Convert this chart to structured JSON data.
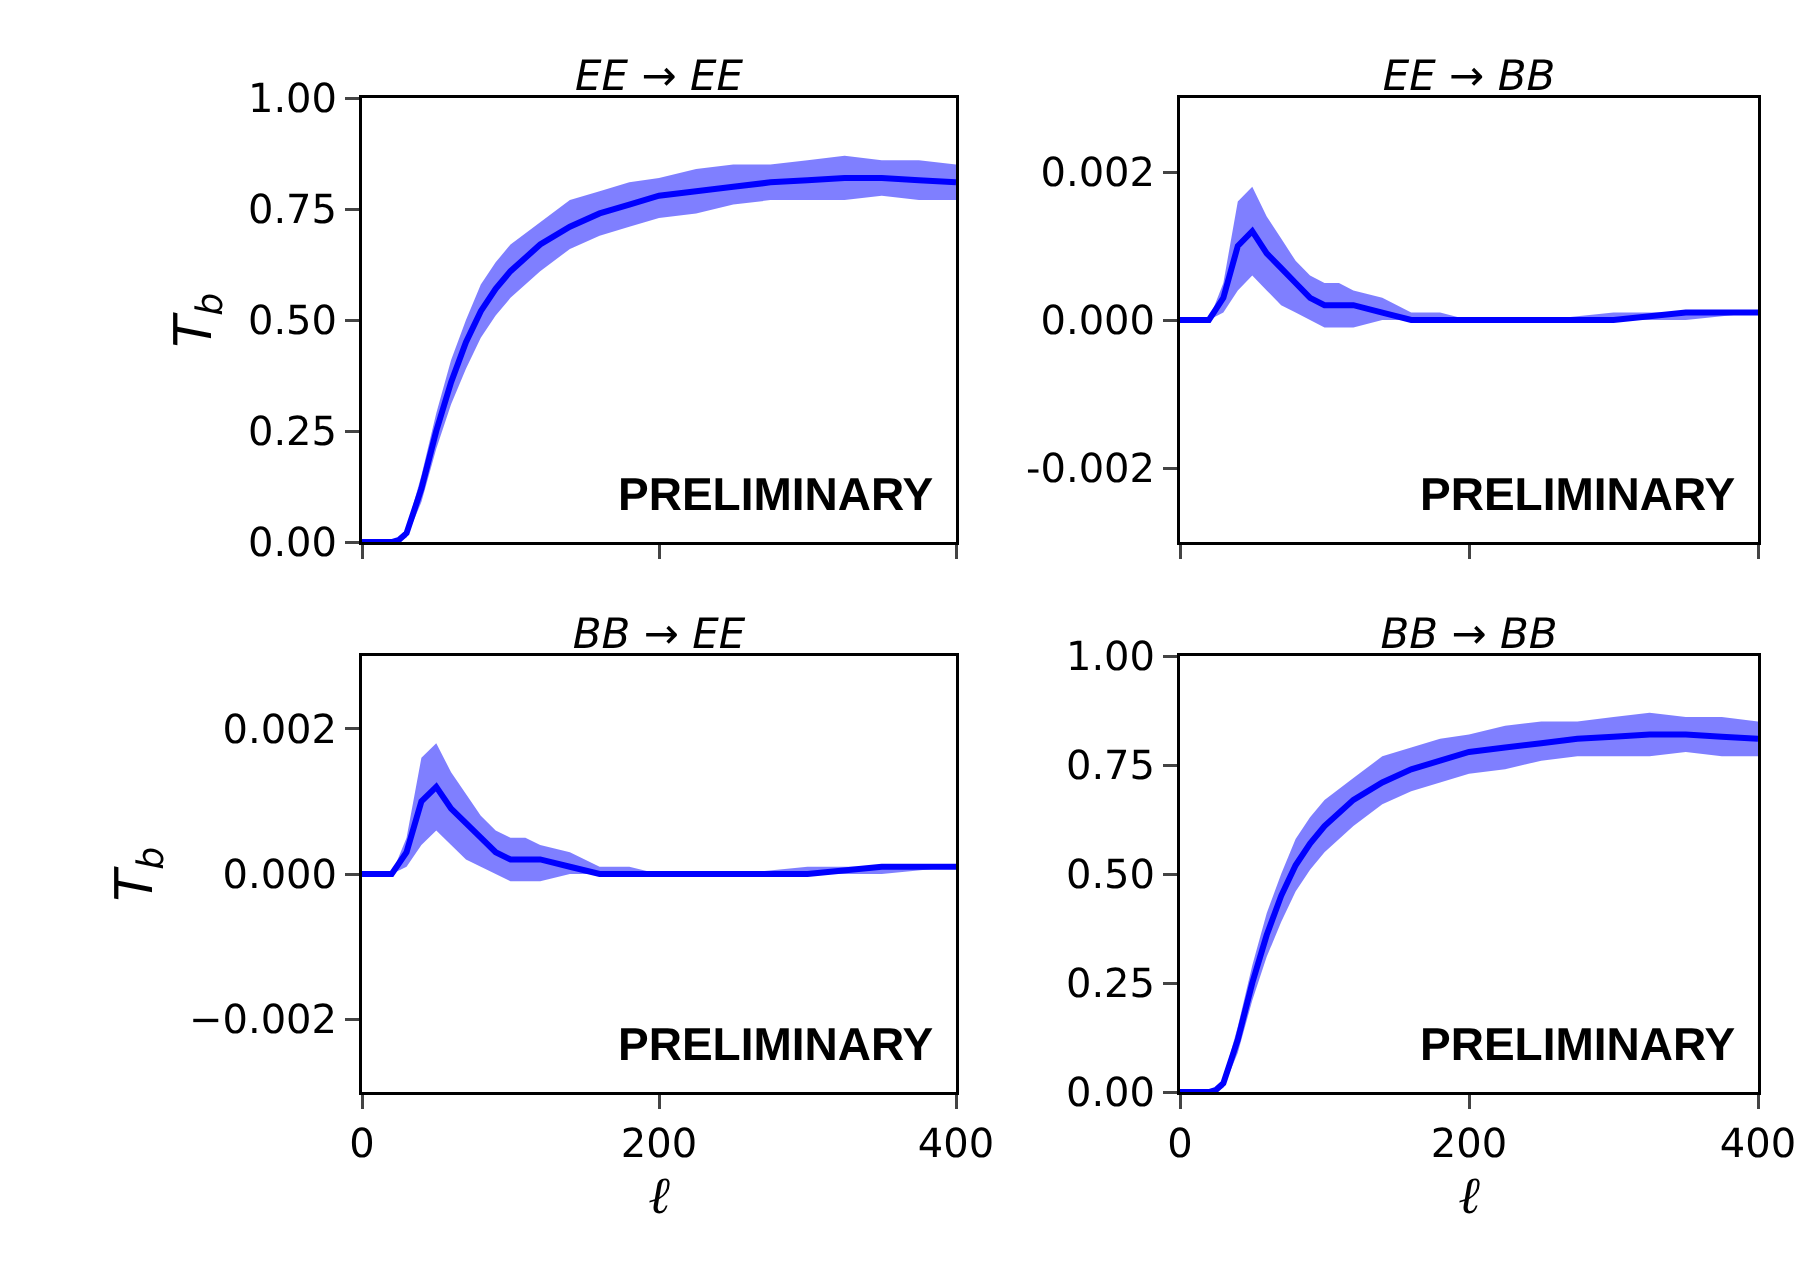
{
  "chart_data": [
    {
      "type": "line",
      "title": "EE → EE",
      "ylabel": "T$_{b}$",
      "x": [
        0,
        10,
        20,
        25,
        30,
        40,
        50,
        60,
        70,
        80,
        90,
        100,
        120,
        140,
        160,
        180,
        200,
        225,
        250,
        275,
        300,
        325,
        350,
        375,
        400
      ],
      "series": [
        {
          "color": "#0000ff",
          "values": [
            0,
            0,
            0,
            0.005,
            0.02,
            0.12,
            0.25,
            0.36,
            0.45,
            0.52,
            0.57,
            0.61,
            0.67,
            0.71,
            0.74,
            0.76,
            0.78,
            0.79,
            0.8,
            0.81,
            0.815,
            0.82,
            0.82,
            0.815,
            0.81
          ],
          "lower": [
            0,
            0,
            0,
            0,
            0.01,
            0.09,
            0.21,
            0.31,
            0.39,
            0.46,
            0.51,
            0.55,
            0.61,
            0.66,
            0.69,
            0.71,
            0.73,
            0.74,
            0.76,
            0.77,
            0.77,
            0.77,
            0.78,
            0.77,
            0.77
          ],
          "upper": [
            0,
            0,
            0,
            0.01,
            0.03,
            0.15,
            0.29,
            0.41,
            0.5,
            0.58,
            0.63,
            0.67,
            0.72,
            0.77,
            0.79,
            0.81,
            0.82,
            0.84,
            0.85,
            0.85,
            0.86,
            0.87,
            0.86,
            0.86,
            0.85
          ]
        }
      ],
      "xlim": [
        0,
        400
      ],
      "xticks": [
        {
          "value": 0,
          "label": null
        },
        {
          "value": 200,
          "label": null
        },
        {
          "value": 400,
          "label": null
        }
      ],
      "ylim": [
        0,
        1
      ],
      "yticks": [
        {
          "value": 0,
          "label": "0.00"
        },
        {
          "value": 0.25,
          "label": "0.25"
        },
        {
          "value": 0.5,
          "label": "0.50"
        },
        {
          "value": 0.75,
          "label": "0.75"
        },
        {
          "value": 1,
          "label": "1.00"
        }
      ],
      "tick_labels": "y",
      "grid": false,
      "annotations": [
        "PRELIMINARY"
      ]
    },
    {
      "type": "line",
      "title": "EE → BB",
      "x": [
        0,
        10,
        20,
        30,
        40,
        50,
        60,
        70,
        80,
        90,
        100,
        110,
        120,
        140,
        160,
        180,
        200,
        250,
        300,
        350,
        400
      ],
      "series": [
        {
          "color": "#0000ff",
          "values": [
            0,
            0,
            0,
            0.0003,
            0.001,
            0.0012,
            0.0009,
            0.0007,
            0.0005,
            0.0003,
            0.0002,
            0.0002,
            0.0002,
            0.0001,
            0,
            0,
            0,
            0,
            0,
            0.0001,
            0.0001
          ],
          "lower": [
            0,
            0,
            0,
            0.0001,
            0.0004,
            0.0006,
            0.0004,
            0.0002,
            0.0001,
            0,
            -0.0001,
            -0.0001,
            -0.0001,
            0,
            0,
            0,
            0,
            0,
            0,
            0,
            0.0001
          ],
          "upper": [
            0,
            0,
            0,
            0.0005,
            0.0016,
            0.0018,
            0.0014,
            0.0011,
            0.0008,
            0.0006,
            0.0005,
            0.0005,
            0.0004,
            0.0003,
            0.0001,
            0.0001,
            0,
            0,
            0.0001,
            0.0001,
            0.0001
          ]
        }
      ],
      "xlim": [
        0,
        400
      ],
      "xticks": [
        {
          "value": 0,
          "label": null
        },
        {
          "value": 200,
          "label": null
        },
        {
          "value": 400,
          "label": null
        }
      ],
      "ylim": [
        -0.003,
        0.003
      ],
      "yticks": [
        {
          "value": -0.002,
          "label": "-0.002"
        },
        {
          "value": 0,
          "label": "0.000"
        },
        {
          "value": 0.002,
          "label": "0.002"
        }
      ],
      "tick_labels": "y",
      "grid": false,
      "annotations": [
        "PRELIMINARY"
      ]
    },
    {
      "type": "line",
      "title": "BB → EE",
      "ylabel": "T$_{b}$",
      "xlabel": "ℓ",
      "x": [
        0,
        10,
        20,
        30,
        40,
        50,
        60,
        70,
        80,
        90,
        100,
        110,
        120,
        140,
        160,
        180,
        200,
        250,
        300,
        350,
        400
      ],
      "series": [
        {
          "color": "#0000ff",
          "values": [
            0,
            0,
            0,
            0.0003,
            0.001,
            0.0012,
            0.0009,
            0.0007,
            0.0005,
            0.0003,
            0.0002,
            0.0002,
            0.0002,
            0.0001,
            0,
            0,
            0,
            0,
            0,
            0.0001,
            0.0001
          ],
          "lower": [
            0,
            0,
            0,
            0.0001,
            0.0004,
            0.0006,
            0.0004,
            0.0002,
            0.0001,
            0,
            -0.0001,
            -0.0001,
            -0.0001,
            0,
            0,
            0,
            0,
            0,
            0,
            0,
            0.0001
          ],
          "upper": [
            0,
            0,
            0,
            0.0005,
            0.0016,
            0.0018,
            0.0014,
            0.0011,
            0.0008,
            0.0006,
            0.0005,
            0.0005,
            0.0004,
            0.0003,
            0.0001,
            0.0001,
            0,
            0,
            0.0001,
            0.0001,
            0.0001
          ]
        }
      ],
      "xlim": [
        0,
        400
      ],
      "xticks": [
        0,
        200,
        400
      ],
      "ylim": [
        -0.003,
        0.003
      ],
      "yticks": [
        {
          "value": -0.002,
          "label": "−0.002"
        },
        {
          "value": 0,
          "label": "0.000"
        },
        {
          "value": 0.002,
          "label": "0.002"
        }
      ],
      "grid": false,
      "annotations": [
        "PRELIMINARY"
      ]
    },
    {
      "type": "line",
      "title": "BB → BB",
      "xlabel": "ℓ",
      "x": [
        0,
        10,
        20,
        25,
        30,
        40,
        50,
        60,
        70,
        80,
        90,
        100,
        120,
        140,
        160,
        180,
        200,
        225,
        250,
        275,
        300,
        325,
        350,
        375,
        400
      ],
      "series": [
        {
          "color": "#0000ff",
          "values": [
            0,
            0,
            0,
            0.005,
            0.02,
            0.12,
            0.25,
            0.36,
            0.45,
            0.52,
            0.57,
            0.61,
            0.67,
            0.71,
            0.74,
            0.76,
            0.78,
            0.79,
            0.8,
            0.81,
            0.815,
            0.82,
            0.82,
            0.815,
            0.81
          ],
          "lower": [
            0,
            0,
            0,
            0,
            0.01,
            0.09,
            0.21,
            0.31,
            0.39,
            0.46,
            0.51,
            0.55,
            0.61,
            0.66,
            0.69,
            0.71,
            0.73,
            0.74,
            0.76,
            0.77,
            0.77,
            0.77,
            0.78,
            0.77,
            0.77
          ],
          "upper": [
            0,
            0,
            0,
            0.01,
            0.03,
            0.15,
            0.29,
            0.41,
            0.5,
            0.58,
            0.63,
            0.67,
            0.72,
            0.77,
            0.79,
            0.81,
            0.82,
            0.84,
            0.85,
            0.85,
            0.86,
            0.87,
            0.86,
            0.86,
            0.85
          ]
        }
      ],
      "xlim": [
        0,
        400
      ],
      "xticks": [
        0,
        200,
        400
      ],
      "ylim": [
        0,
        1
      ],
      "yticks": [
        {
          "value": 0,
          "label": "0.00"
        },
        {
          "value": 0.25,
          "label": "0.25"
        },
        {
          "value": 0.5,
          "label": "0.50"
        },
        {
          "value": 0.75,
          "label": "0.75"
        },
        {
          "value": 1,
          "label": "1.00"
        }
      ],
      "grid": false,
      "annotations": [
        "PRELIMINARY"
      ]
    }
  ]
}
